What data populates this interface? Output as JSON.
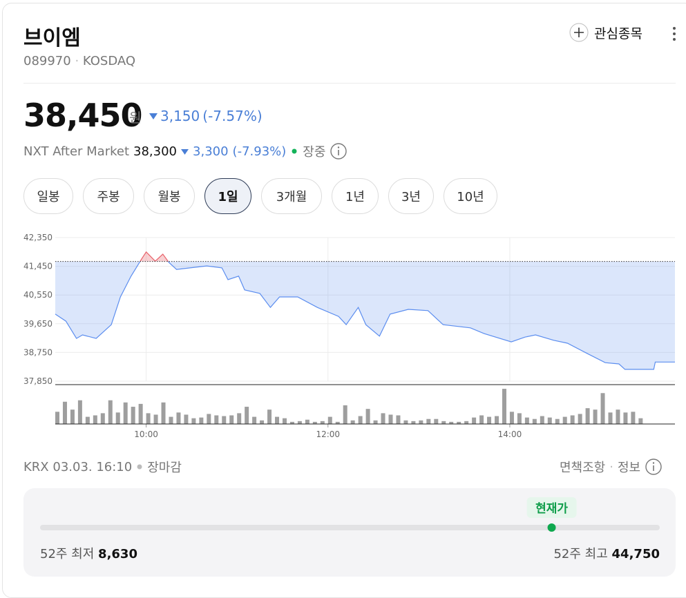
{
  "header": {
    "name": "브이엠",
    "code": "089970",
    "market": "KOSDAQ",
    "watch_button": "관심종목"
  },
  "quote": {
    "price": {
      "value": 38450,
      "label": "38,450"
    },
    "unit": "원",
    "change": "3,150",
    "change_pct": "(-7.57%)",
    "after_market": {
      "label": "NXT After Market",
      "price": "38,300",
      "change": "3,300",
      "change_pct": "(-7.93%)",
      "status": "장중"
    }
  },
  "tabs": [
    "일봉",
    "주봉",
    "월봉",
    "1일",
    "3개월",
    "1년",
    "3년",
    "10년"
  ],
  "active_tab": 3,
  "chart_data": {
    "type": "line",
    "x": [
      "09:00",
      "09:07",
      "09:14",
      "09:18",
      "09:27",
      "09:37",
      "09:43",
      "09:50",
      "09:57",
      "10:00",
      "10:06",
      "10:11",
      "10:15",
      "10:20",
      "10:29",
      "10:40",
      "10:50",
      "10:54",
      "11:01",
      "11:05",
      "11:15",
      "11:22",
      "11:28",
      "11:40",
      "11:53",
      "12:07",
      "12:12",
      "12:20",
      "12:25",
      "12:34",
      "12:41",
      "12:53",
      "13:06",
      "13:16",
      "13:34",
      "13:43",
      "14:01",
      "14:10",
      "14:17",
      "14:29",
      "14:38",
      "14:51",
      "15:03",
      "15:12",
      "15:16",
      "15:35",
      "15:36",
      "15:49"
    ],
    "series": [
      {
        "color": "#5b8def",
        "values": [
          39950,
          39730,
          39190,
          39300,
          39190,
          39620,
          40490,
          41140,
          41680,
          41900,
          41610,
          41830,
          41570,
          41350,
          41400,
          41460,
          41400,
          41030,
          41140,
          40710,
          40600,
          40160,
          40490,
          40490,
          40160,
          39880,
          39620,
          40160,
          39620,
          39260,
          39950,
          40100,
          40060,
          39620,
          39520,
          39340,
          39080,
          39230,
          39300,
          39130,
          39040,
          38720,
          38430,
          38390,
          38220,
          38220,
          38450,
          38450
        ]
      }
    ],
    "up_color": "#e8636b",
    "reference_line": 41600,
    "xlim": [
      "09:00",
      "15:49"
    ],
    "xticks": [
      "10:00",
      "12:00",
      "14:00"
    ],
    "ylim": [
      37850,
      42350
    ],
    "yticks": [
      {
        "value": 37850,
        "label": "37,850"
      },
      {
        "value": 38750,
        "label": "38,750"
      },
      {
        "value": 39650,
        "label": "39,650"
      },
      {
        "value": 40550,
        "label": "40,550"
      },
      {
        "value": 41450,
        "label": "41,450"
      },
      {
        "value": 42350,
        "label": "42,350"
      }
    ],
    "grid": true,
    "volume": {
      "color": "#9e9e9e",
      "ylim": [
        0,
        50
      ],
      "x": [
        "09:00",
        "09:05",
        "09:10",
        "09:15",
        "09:20",
        "09:25",
        "09:30",
        "09:35",
        "09:40",
        "09:45",
        "09:50",
        "09:55",
        "10:00",
        "10:05",
        "10:10",
        "10:15",
        "10:20",
        "10:25",
        "10:30",
        "10:35",
        "10:40",
        "10:45",
        "10:50",
        "10:55",
        "11:00",
        "11:05",
        "11:10",
        "11:15",
        "11:20",
        "11:25",
        "11:30",
        "11:35",
        "11:40",
        "11:45",
        "11:50",
        "11:55",
        "12:00",
        "12:05",
        "12:10",
        "12:15",
        "12:20",
        "12:25",
        "12:30",
        "12:35",
        "12:40",
        "12:45",
        "12:50",
        "12:55",
        "13:00",
        "13:05",
        "13:10",
        "13:15",
        "13:20",
        "13:25",
        "13:30",
        "13:35",
        "13:40",
        "13:45",
        "13:50",
        "13:55",
        "14:00",
        "14:05",
        "14:10",
        "14:15",
        "14:20",
        "14:25",
        "14:30",
        "14:35",
        "14:40",
        "14:45",
        "14:50",
        "14:55",
        "15:00",
        "15:05",
        "15:10",
        "15:15",
        "15:20",
        "15:25"
      ],
      "values": [
        17,
        31,
        20,
        33,
        10,
        12,
        15,
        33,
        16,
        30,
        24,
        28,
        15,
        13,
        30,
        10,
        16,
        13,
        8,
        9,
        14,
        12,
        11,
        12,
        15,
        24,
        10,
        5,
        20,
        10,
        8,
        3,
        4,
        6,
        3,
        4,
        10,
        3,
        26,
        5,
        11,
        21,
        5,
        15,
        13,
        12,
        5,
        4,
        5,
        7,
        7,
        4,
        3,
        3,
        4,
        9,
        12,
        10,
        11,
        49,
        17,
        15,
        9,
        7,
        11,
        9,
        7,
        10,
        12,
        14,
        22,
        20,
        43,
        16,
        20,
        16,
        17,
        8
      ]
    }
  },
  "footer": {
    "source": "KRX 03.03. 16:10",
    "status": "장마감",
    "disclaimer": "면책조항",
    "info": "정보"
  },
  "range": {
    "current_label": "현재가",
    "low_label": "52주 최저",
    "low": {
      "value": 8630,
      "label": "8,630"
    },
    "high_label": "52주 최고",
    "high": {
      "value": 44750,
      "label": "44,750"
    }
  }
}
